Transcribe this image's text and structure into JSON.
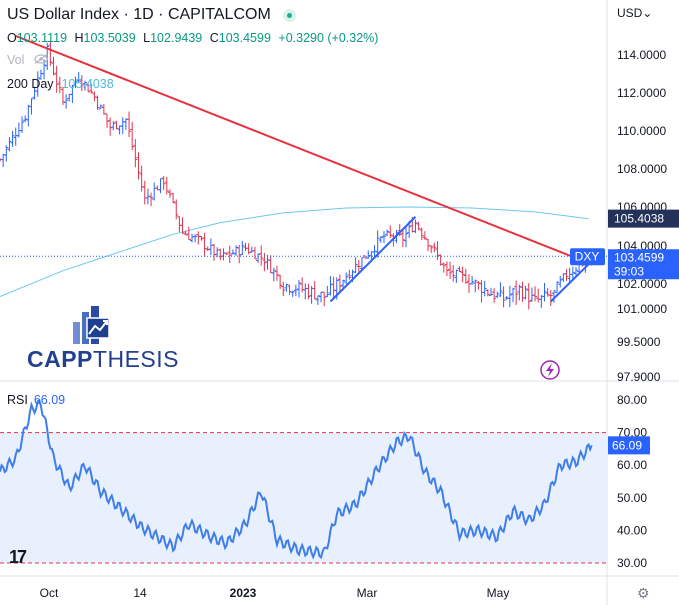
{
  "header": {
    "title": "US Dollar Index · 1D · CAPITALCOM",
    "ohlc": [
      {
        "k": "O",
        "v": "103.1119"
      },
      {
        "k": "H",
        "v": "103.5039"
      },
      {
        "k": "L",
        "v": "102.9439"
      },
      {
        "k": "C",
        "v": "103.4599"
      },
      {
        "k": "",
        "v": "+0.3290 (+0.32%)"
      }
    ],
    "vol_label": "Vol",
    "sma_label": "200 Day",
    "sma_value": "105.4038",
    "currency": "USD"
  },
  "rsi_label": "RSI",
  "rsi_value_text": "66.09",
  "logo": {
    "part1": "CAPP",
    "part2": "THESIS"
  },
  "colors": {
    "up": "#2962ff",
    "down": "#e0324d",
    "sma": "#6fc6ee",
    "trendline": "#e5323e",
    "channel": "#2962ff",
    "rsi": "#3f7ee8",
    "rsi_band": "#e8f0fd",
    "logo": "#23408e",
    "price_tag": "#2962ff",
    "sma_tag": "#24325a"
  },
  "chart_data": {
    "type": "candlestick",
    "symbol": "DXY",
    "last_price": "103.4599",
    "countdown": "39:03",
    "sma_tag": "105.4038",
    "price_ticks": [
      "114.0000",
      "112.0000",
      "110.0000",
      "108.0000",
      "106.0000",
      "104.0000",
      "102.0000",
      "101.0000",
      "99.5000",
      "97.9000"
    ],
    "price_scale": [
      {
        "label": "114.0000",
        "value": 114.0
      },
      {
        "label": "112.0000",
        "value": 112.0
      },
      {
        "label": "110.0000",
        "value": 110.0
      },
      {
        "label": "108.0000",
        "value": 108.0
      },
      {
        "label": "106.0000",
        "value": 106.0
      },
      {
        "label": "104.0000",
        "value": 104.0
      },
      {
        "label": "102.0000",
        "value": 102.0
      },
      {
        "label": "101.0000",
        "value": 101.0
      },
      {
        "label": "99.5000",
        "value": 99.5
      },
      {
        "label": "97.9000",
        "value": 97.9
      }
    ],
    "rsi_ticks": [
      "80.00",
      "70.00",
      "60.00",
      "50.00",
      "40.00",
      "30.00"
    ],
    "rsi_levels": {
      "upper": 70,
      "lower": 30
    },
    "x_labels": [
      "Oct",
      "14",
      "2023",
      "Mar",
      "May"
    ],
    "sma200": [
      {
        "t": 0,
        "v": 101.5
      },
      {
        "t": 20,
        "v": 102.7
      },
      {
        "t": 40,
        "v": 103.8
      },
      {
        "t": 55,
        "v": 104.6
      },
      {
        "t": 70,
        "v": 105.2
      },
      {
        "t": 90,
        "v": 105.7
      },
      {
        "t": 110,
        "v": 105.95
      },
      {
        "t": 130,
        "v": 106.0
      },
      {
        "t": 150,
        "v": 105.95
      },
      {
        "t": 170,
        "v": 105.75
      },
      {
        "t": 187,
        "v": 105.4
      }
    ],
    "trendline": [
      {
        "t": 5,
        "v": 115.0
      },
      {
        "t": 187,
        "v": 103.1
      }
    ],
    "channel_lines": [
      [
        {
          "t": 105,
          "v": 101.3
        },
        {
          "t": 132,
          "v": 105.5
        }
      ],
      [
        {
          "t": 175,
          "v": 101.3
        },
        {
          "t": 188,
          "v": 103.2
        }
      ]
    ],
    "price_path": [
      {
        "t": 0,
        "v": 108.5
      },
      {
        "t": 8,
        "v": 110.8
      },
      {
        "t": 15,
        "v": 114.2
      },
      {
        "t": 20,
        "v": 111.5
      },
      {
        "t": 25,
        "v": 112.9
      },
      {
        "t": 30,
        "v": 111.8
      },
      {
        "t": 35,
        "v": 110.2
      },
      {
        "t": 40,
        "v": 110.6
      },
      {
        "t": 46,
        "v": 106.4
      },
      {
        "t": 52,
        "v": 107.4
      },
      {
        "t": 58,
        "v": 104.7
      },
      {
        "t": 64,
        "v": 104.2
      },
      {
        "t": 70,
        "v": 103.4
      },
      {
        "t": 78,
        "v": 103.9
      },
      {
        "t": 84,
        "v": 103.3
      },
      {
        "t": 90,
        "v": 102.0
      },
      {
        "t": 96,
        "v": 101.8
      },
      {
        "t": 103,
        "v": 101.5
      },
      {
        "t": 108,
        "v": 102.1
      },
      {
        "t": 115,
        "v": 103.3
      },
      {
        "t": 122,
        "v": 104.5
      },
      {
        "t": 128,
        "v": 104.4
      },
      {
        "t": 132,
        "v": 105.2
      },
      {
        "t": 137,
        "v": 104.0
      },
      {
        "t": 142,
        "v": 102.6
      },
      {
        "t": 148,
        "v": 102.3
      },
      {
        "t": 155,
        "v": 101.7
      },
      {
        "t": 160,
        "v": 101.4
      },
      {
        "t": 165,
        "v": 101.8
      },
      {
        "t": 170,
        "v": 101.3
      },
      {
        "t": 176,
        "v": 101.6
      },
      {
        "t": 180,
        "v": 102.5
      },
      {
        "t": 184,
        "v": 103.0
      },
      {
        "t": 188,
        "v": 103.46
      }
    ],
    "rsi_path": [
      {
        "t": 0,
        "v": 58
      },
      {
        "t": 5,
        "v": 62
      },
      {
        "t": 10,
        "v": 77
      },
      {
        "t": 13,
        "v": 79
      },
      {
        "t": 17,
        "v": 62
      },
      {
        "t": 22,
        "v": 53
      },
      {
        "t": 27,
        "v": 60
      },
      {
        "t": 32,
        "v": 52
      },
      {
        "t": 38,
        "v": 47
      },
      {
        "t": 45,
        "v": 41
      },
      {
        "t": 50,
        "v": 38
      },
      {
        "t": 55,
        "v": 35
      },
      {
        "t": 60,
        "v": 42
      },
      {
        "t": 67,
        "v": 38
      },
      {
        "t": 72,
        "v": 36
      },
      {
        "t": 78,
        "v": 42
      },
      {
        "t": 83,
        "v": 52
      },
      {
        "t": 88,
        "v": 37
      },
      {
        "t": 95,
        "v": 34
      },
      {
        "t": 103,
        "v": 33
      },
      {
        "t": 107,
        "v": 45
      },
      {
        "t": 113,
        "v": 48
      },
      {
        "t": 120,
        "v": 59
      },
      {
        "t": 126,
        "v": 67
      },
      {
        "t": 130,
        "v": 69
      },
      {
        "t": 135,
        "v": 58
      },
      {
        "t": 140,
        "v": 52
      },
      {
        "t": 146,
        "v": 39
      },
      {
        "t": 152,
        "v": 40
      },
      {
        "t": 158,
        "v": 38
      },
      {
        "t": 163,
        "v": 46
      },
      {
        "t": 168,
        "v": 43
      },
      {
        "t": 173,
        "v": 48
      },
      {
        "t": 178,
        "v": 60
      },
      {
        "t": 183,
        "v": 61
      },
      {
        "t": 188,
        "v": 66.09
      }
    ]
  }
}
